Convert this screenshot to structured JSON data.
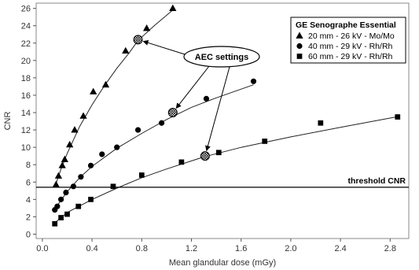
{
  "chart_data": {
    "type": "scatter",
    "xlabel": "Mean glandular dose (mGy)",
    "ylabel": "CNR",
    "xlim": [
      -0.05,
      2.95
    ],
    "ylim": [
      -0.5,
      26.6
    ],
    "xticks": [
      "0.0",
      "0.4",
      "0.8",
      "1.2",
      "1.6",
      "2.0",
      "2.4",
      "2.8"
    ],
    "yticks": [
      "0",
      "2",
      "4",
      "6",
      "8",
      "10",
      "12",
      "14",
      "16",
      "18",
      "20",
      "22",
      "24",
      "26"
    ],
    "grid": false,
    "legend": {
      "title": "GE Senographe Essential",
      "placement": "top-right"
    },
    "series": [
      {
        "name": "20 mm - 26 kV - Mo/Mo",
        "marker": "triangle",
        "x": [
          0.11,
          0.13,
          0.16,
          0.18,
          0.22,
          0.26,
          0.33,
          0.41,
          0.51,
          0.67,
          0.84,
          1.05
        ],
        "y": [
          5.7,
          6.7,
          7.9,
          8.6,
          10.3,
          12.0,
          13.6,
          16.4,
          17.2,
          21.1,
          23.7,
          26.0
        ],
        "curve_x": [
          0.1,
          0.15,
          0.2,
          0.3,
          0.4,
          0.5,
          0.6,
          0.7,
          0.77,
          0.9,
          1.05
        ],
        "curve_y": [
          5.4,
          7.5,
          9.3,
          12.4,
          14.9,
          17.1,
          19.1,
          20.9,
          22.3,
          24.0,
          25.8
        ]
      },
      {
        "name": "40 mm - 29 kV - Rh/Rh",
        "marker": "circle",
        "x": [
          0.1,
          0.12,
          0.15,
          0.19,
          0.25,
          0.31,
          0.39,
          0.48,
          0.6,
          0.77,
          0.96,
          1.32,
          1.7
        ],
        "y": [
          2.8,
          3.2,
          4.0,
          4.8,
          5.5,
          6.6,
          7.9,
          9.2,
          10.0,
          12.0,
          12.8,
          15.6,
          17.6
        ],
        "curve_x": [
          0.1,
          0.2,
          0.3,
          0.4,
          0.6,
          0.8,
          1.0,
          1.2,
          1.4,
          1.7
        ],
        "curve_y": [
          2.9,
          4.9,
          6.5,
          7.8,
          9.9,
          11.6,
          13.2,
          14.6,
          15.7,
          17.2
        ]
      },
      {
        "name": "60 mm - 29 kV - Rh/Rh",
        "marker": "square",
        "x": [
          0.1,
          0.15,
          0.2,
          0.29,
          0.39,
          0.57,
          0.8,
          1.12,
          1.42,
          1.79,
          2.24,
          2.86
        ],
        "y": [
          1.2,
          1.9,
          2.3,
          3.2,
          4.0,
          5.5,
          6.8,
          8.3,
          9.4,
          10.7,
          12.8,
          13.5
        ],
        "curve_x": [
          0.1,
          0.2,
          0.4,
          0.6,
          0.8,
          1.0,
          1.3,
          1.6,
          2.0,
          2.4,
          2.85
        ],
        "curve_y": [
          1.3,
          2.5,
          4.0,
          5.3,
          6.5,
          7.5,
          8.9,
          10.0,
          11.2,
          12.3,
          13.5
        ]
      }
    ],
    "aec_points": [
      {
        "x": 0.77,
        "y": 22.4
      },
      {
        "x": 1.05,
        "y": 14.0
      },
      {
        "x": 1.31,
        "y": 9.0
      }
    ],
    "annotation": {
      "text": "AEC settings",
      "target_x": [
        0.77,
        1.05,
        1.31
      ],
      "target_y": [
        22.4,
        14.0,
        9.0
      ]
    },
    "threshold": {
      "label": "threshold CNR",
      "y": 5.4
    }
  }
}
